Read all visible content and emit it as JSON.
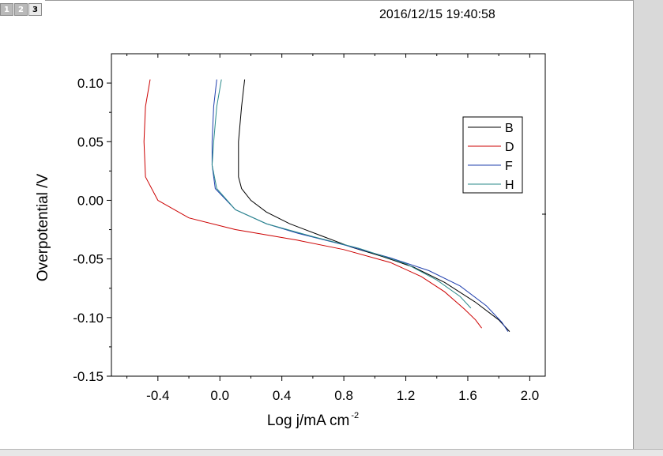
{
  "window": {
    "page_tabs": [
      "1",
      "2",
      "3"
    ],
    "active_tab": "3",
    "timestamp": "2016/12/15 19:40:58"
  },
  "chart_data": {
    "type": "line",
    "title": "",
    "xlabel": "Log j/mA cm",
    "xlabel_superscript": "-2",
    "ylabel": "Overpotential /V",
    "xlim": [
      -0.7,
      2.1
    ],
    "ylim": [
      -0.15,
      0.125
    ],
    "x_ticks": [
      -0.4,
      0.0,
      0.4,
      0.8,
      1.2,
      1.6,
      2.0
    ],
    "x_tick_labels": [
      "-0.4",
      "0.0",
      "0.4",
      "0.8",
      "1.2",
      "1.6",
      "2.0"
    ],
    "y_ticks": [
      -0.15,
      -0.1,
      -0.05,
      0.0,
      0.05,
      0.1
    ],
    "y_tick_labels": [
      "-0.15",
      "-0.10",
      "-0.05",
      "0.00",
      "0.05",
      "0.10"
    ],
    "grid": false,
    "legend_position": "top-right",
    "series": [
      {
        "name": "B",
        "color": "#000000",
        "x": [
          0.16,
          0.14,
          0.12,
          0.12,
          0.14,
          0.2,
          0.3,
          0.45,
          0.65,
          0.85,
          1.05,
          1.25,
          1.45,
          1.65,
          1.8,
          1.87
        ],
        "y": [
          0.103,
          0.08,
          0.05,
          0.02,
          0.01,
          0.0,
          -0.01,
          -0.02,
          -0.03,
          -0.04,
          -0.048,
          -0.057,
          -0.07,
          -0.087,
          -0.102,
          -0.112
        ]
      },
      {
        "name": "D",
        "color": "#cc0000",
        "x": [
          -0.45,
          -0.48,
          -0.49,
          -0.48,
          -0.4,
          -0.2,
          0.1,
          0.5,
          0.8,
          1.1,
          1.3,
          1.45,
          1.58,
          1.65,
          1.69
        ],
        "y": [
          0.103,
          0.08,
          0.05,
          0.02,
          0.0,
          -0.015,
          -0.025,
          -0.034,
          -0.042,
          -0.053,
          -0.065,
          -0.078,
          -0.093,
          -0.102,
          -0.109
        ]
      },
      {
        "name": "F",
        "color": "#1f3fae",
        "x": [
          -0.02,
          -0.04,
          -0.05,
          -0.05,
          -0.03,
          0.1,
          0.3,
          0.5,
          0.8,
          1.1,
          1.35,
          1.55,
          1.72,
          1.82,
          1.86
        ],
        "y": [
          0.103,
          0.08,
          0.05,
          0.03,
          0.01,
          -0.008,
          -0.02,
          -0.028,
          -0.038,
          -0.049,
          -0.06,
          -0.073,
          -0.09,
          -0.104,
          -0.112
        ]
      },
      {
        "name": "H",
        "color": "#2a8a8a",
        "x": [
          0.01,
          -0.02,
          -0.04,
          -0.05,
          -0.02,
          0.1,
          0.3,
          0.6,
          0.9,
          1.2,
          1.4,
          1.55,
          1.62
        ],
        "y": [
          0.103,
          0.08,
          0.05,
          0.03,
          0.01,
          -0.008,
          -0.02,
          -0.031,
          -0.041,
          -0.054,
          -0.068,
          -0.082,
          -0.092
        ]
      }
    ]
  }
}
